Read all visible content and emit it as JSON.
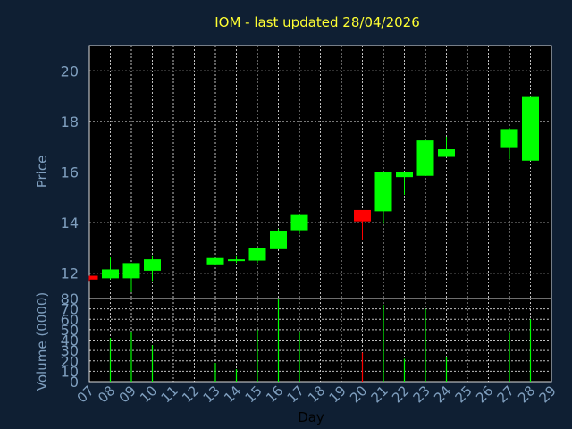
{
  "chart_data": [
    {
      "type": "candlestick",
      "title": "IOM - last updated 28/04/2026",
      "ylabel": "Price",
      "xlabel": "Day",
      "ylim": [
        11,
        21
      ],
      "yticks": [
        12,
        14,
        16,
        18,
        20
      ],
      "grid": true,
      "colors": {
        "up": "#00ff00",
        "down": "#ff0000",
        "background": "#0f1f33",
        "plot": "#000000",
        "grid": "#ffffff",
        "title": "#ffff33",
        "axis_text": "#7f9fbf"
      },
      "x_ticks": [
        "07",
        "08",
        "09",
        "10",
        "11",
        "12",
        "13",
        "14",
        "15",
        "16",
        "17",
        "18",
        "19",
        "20",
        "21",
        "22",
        "23",
        "24",
        "25",
        "26",
        "27",
        "28",
        "29"
      ],
      "candles": [
        {
          "day": "07",
          "open": 11.9,
          "high": 11.9,
          "low": 11.7,
          "close": 11.75
        },
        {
          "day": "08",
          "open": 11.8,
          "high": 12.65,
          "low": 11.75,
          "close": 12.15
        },
        {
          "day": "09",
          "open": 11.8,
          "high": 12.4,
          "low": 11.25,
          "close": 12.4
        },
        {
          "day": "10",
          "open": 12.1,
          "high": 12.7,
          "low": 11.7,
          "close": 12.55
        },
        {
          "day": "13",
          "open": 12.35,
          "high": 12.6,
          "low": 12.35,
          "close": 12.6
        },
        {
          "day": "14",
          "open": 12.5,
          "high": 12.7,
          "low": 12.4,
          "close": 12.55
        },
        {
          "day": "15",
          "open": 12.5,
          "high": 13.0,
          "low": 12.4,
          "close": 13.0
        },
        {
          "day": "16",
          "open": 12.95,
          "high": 13.75,
          "low": 12.95,
          "close": 13.65
        },
        {
          "day": "17",
          "open": 13.7,
          "high": 14.3,
          "low": 13.55,
          "close": 14.3
        },
        {
          "day": "20",
          "open": 14.5,
          "high": 14.5,
          "low": 13.3,
          "close": 14.05
        },
        {
          "day": "21",
          "open": 14.45,
          "high": 16.0,
          "low": 13.95,
          "close": 16.0
        },
        {
          "day": "22",
          "open": 15.8,
          "high": 16.0,
          "low": 15.1,
          "close": 16.0
        },
        {
          "day": "23",
          "open": 15.85,
          "high": 17.25,
          "low": 15.85,
          "close": 17.25
        },
        {
          "day": "24",
          "open": 16.6,
          "high": 17.4,
          "low": 16.6,
          "close": 16.9
        },
        {
          "day": "27",
          "open": 16.95,
          "high": 17.75,
          "low": 16.5,
          "close": 17.7
        },
        {
          "day": "28",
          "open": 16.45,
          "high": 19.0,
          "low": 16.45,
          "close": 19.0
        }
      ]
    },
    {
      "type": "bar",
      "ylabel": "Volume (0000)",
      "ylim": [
        0,
        80
      ],
      "yticks": [
        0,
        10,
        20,
        30,
        40,
        50,
        60,
        70,
        80
      ],
      "grid": true,
      "bars": [
        {
          "day": "08",
          "value": 42,
          "direction": "up"
        },
        {
          "day": "09",
          "value": 48,
          "direction": "up"
        },
        {
          "day": "10",
          "value": 35,
          "direction": "up"
        },
        {
          "day": "13",
          "value": 18,
          "direction": "up"
        },
        {
          "day": "14",
          "value": 12,
          "direction": "up"
        },
        {
          "day": "15",
          "value": 50,
          "direction": "up"
        },
        {
          "day": "16",
          "value": 80,
          "direction": "up"
        },
        {
          "day": "17",
          "value": 48,
          "direction": "up"
        },
        {
          "day": "20",
          "value": 28,
          "direction": "down"
        },
        {
          "day": "21",
          "value": 74,
          "direction": "up"
        },
        {
          "day": "22",
          "value": 22,
          "direction": "up"
        },
        {
          "day": "23",
          "value": 70,
          "direction": "up"
        },
        {
          "day": "24",
          "value": 24,
          "direction": "up"
        },
        {
          "day": "27",
          "value": 47,
          "direction": "up"
        },
        {
          "day": "28",
          "value": 60,
          "direction": "up"
        }
      ]
    }
  ]
}
